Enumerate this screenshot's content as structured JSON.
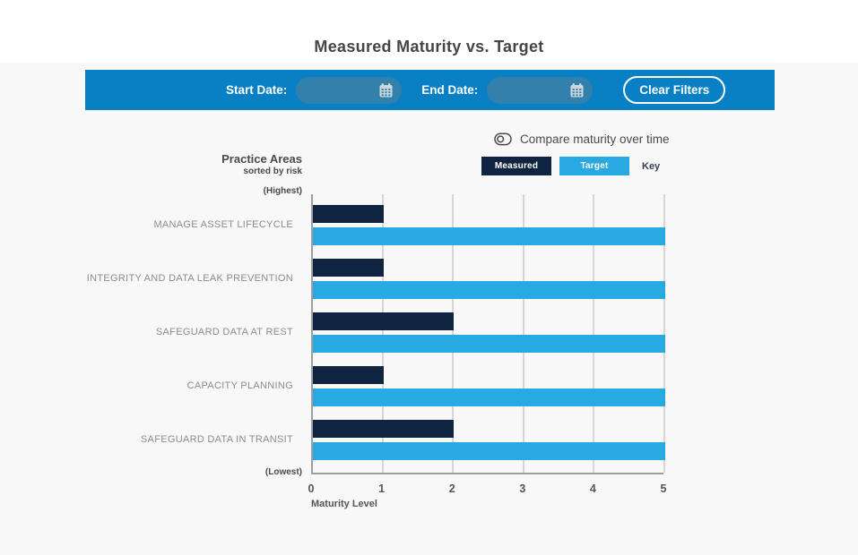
{
  "page": {
    "title": "Measured Maturity vs. Target"
  },
  "filter_bar": {
    "start_date_label": "Start Date:",
    "end_date_label": "End Date:",
    "start_date_value": "",
    "end_date_value": "",
    "clear_filters_label": "Clear Filters"
  },
  "controls": {
    "compare_toggle_label": "Compare maturity over time",
    "legend": {
      "measured_label": "Measured",
      "target_label": "Target",
      "key_label": "Key"
    }
  },
  "chart_data": {
    "type": "bar",
    "orientation": "horizontal",
    "title": "Measured Maturity vs. Target",
    "axis_title_left": "Practice Areas",
    "axis_subtitle_left": "sorted by risk",
    "highest_label": "(Highest)",
    "lowest_label": "(Lowest)",
    "xlabel": "Maturity Level",
    "xlim": [
      0,
      5
    ],
    "x_ticks": [
      0,
      1,
      2,
      3,
      4,
      5
    ],
    "grid": true,
    "legend_position": "top-right",
    "categories": [
      "MANAGE ASSET LIFECYCLE",
      "INTEGRITY AND DATA LEAK PREVENTION",
      "SAFEGUARD DATA AT REST",
      "CAPACITY PLANNING",
      "SAFEGUARD DATA IN TRANSIT"
    ],
    "series": [
      {
        "name": "Measured",
        "color": "#0e2440",
        "values": [
          1,
          1,
          2,
          1,
          2
        ]
      },
      {
        "name": "Target",
        "color": "#29a9e1",
        "values": [
          5,
          5,
          5,
          5,
          5
        ]
      }
    ]
  },
  "colors": {
    "header_bar": "#0a80c4",
    "date_input": "#3380ad",
    "measured": "#0e2440",
    "target": "#29a9e1",
    "content_background": "#f8f8f8",
    "gridline": "#d6d6d6",
    "axis_line": "#9e9e9e"
  }
}
